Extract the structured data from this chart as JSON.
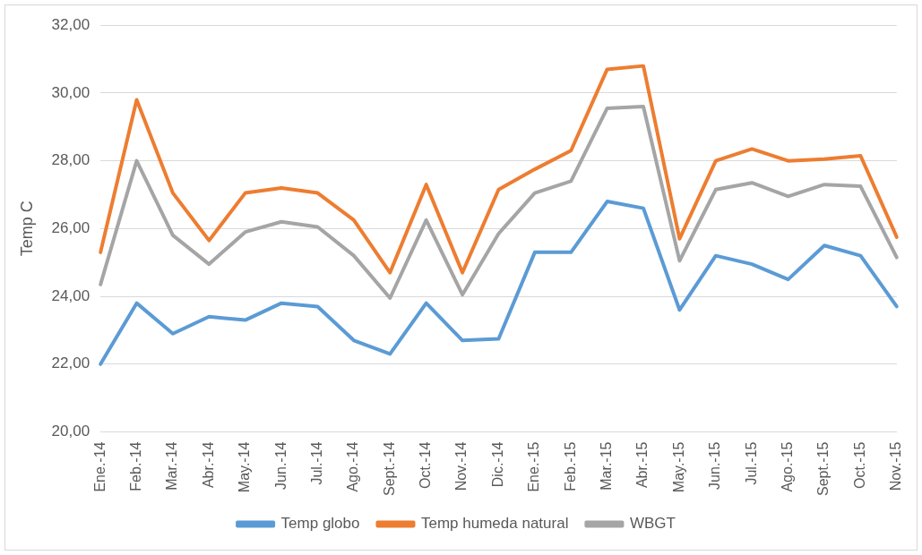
{
  "chart_data": {
    "type": "line",
    "ylabel": "Temp C",
    "categories": [
      "Ene.-14",
      "Feb.-14",
      "Mar.-14",
      "Abr.-14",
      "May.-14",
      "Jun.-14",
      "Jul.-14",
      "Ago.-14",
      "Sept.-14",
      "Oct.-14",
      "Nov.-14",
      "Dic.-14",
      "Ene.-15",
      "Feb.-15",
      "Mar.-15",
      "Abr.-15",
      "May.-15",
      "Jun.-15",
      "Jul.-15",
      "Ago.-15",
      "Sept.-15",
      "Oct.-15",
      "Nov.-15"
    ],
    "series": [
      {
        "name": "Temp globo",
        "color": "#5b9bd5",
        "values": [
          22.0,
          23.8,
          22.9,
          23.4,
          23.3,
          23.8,
          23.7,
          22.7,
          22.3,
          23.8,
          22.7,
          22.75,
          25.3,
          25.3,
          26.8,
          26.6,
          23.6,
          25.2,
          24.95,
          24.5,
          25.5,
          25.2,
          23.7
        ]
      },
      {
        "name": "Temp humeda natural",
        "color": "#ed7d31",
        "values": [
          25.3,
          29.8,
          27.05,
          25.65,
          27.05,
          27.2,
          27.05,
          26.25,
          24.7,
          27.3,
          24.7,
          27.15,
          27.75,
          28.3,
          30.7,
          30.8,
          25.7,
          28.0,
          28.35,
          28.0,
          28.05,
          28.15,
          25.75
        ]
      },
      {
        "name": "WBGT",
        "color": "#a5a5a5",
        "values": [
          24.35,
          28.0,
          25.8,
          24.95,
          25.9,
          26.2,
          26.05,
          25.2,
          23.95,
          26.25,
          24.05,
          25.85,
          27.05,
          27.4,
          29.55,
          29.6,
          25.05,
          27.15,
          27.35,
          26.95,
          27.3,
          27.25,
          25.15
        ]
      }
    ],
    "ylim": [
      20,
      32
    ],
    "yticks": [
      {
        "value": 20,
        "label": "20,00"
      },
      {
        "value": 22,
        "label": "22,00"
      },
      {
        "value": 24,
        "label": "24,00"
      },
      {
        "value": 26,
        "label": "26,00"
      },
      {
        "value": 28,
        "label": "28,00"
      },
      {
        "value": 30,
        "label": "30,00"
      },
      {
        "value": 32,
        "label": "32,00"
      }
    ],
    "grid": "y",
    "legend": "bottom",
    "marker": "none",
    "line_style": "solid"
  }
}
